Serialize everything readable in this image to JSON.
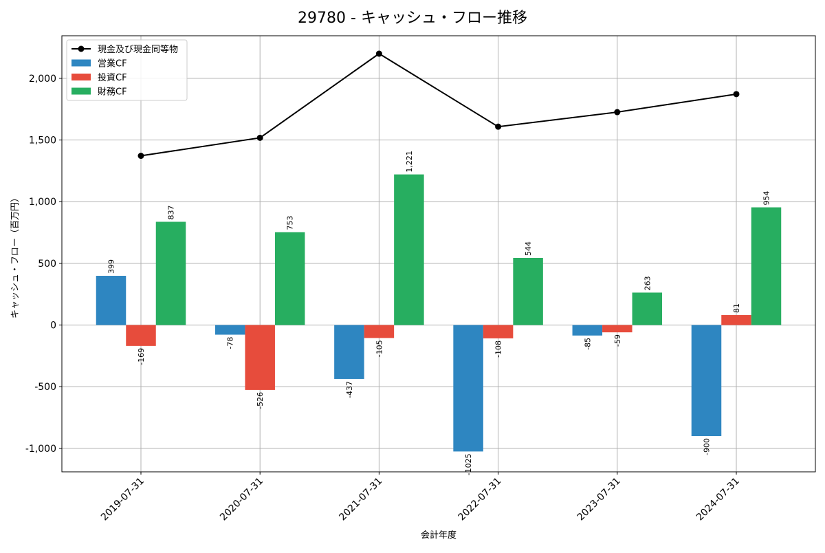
{
  "chart_data": {
    "type": "bar",
    "title": "29780 - キャッシュ・フロー推移",
    "xlabel": "会計年度",
    "ylabel": "キャッシュ・フロー（百万円）",
    "categories": [
      "2019-07-31",
      "2020-07-31",
      "2021-07-31",
      "2022-07-31",
      "2023-07-31",
      "2024-07-31"
    ],
    "ylim": [
      -1190,
      2345
    ],
    "yticks": [
      -1000,
      -500,
      0,
      500,
      1000,
      1500,
      2000
    ],
    "ytick_labels": [
      "-1,000",
      "-500",
      "0",
      "500",
      "1,000",
      "1,500",
      "2,000"
    ],
    "grid": true,
    "legend_position": "top-left",
    "series": [
      {
        "name": "営業CF",
        "kind": "bar",
        "color": "#2e86c1",
        "values": [
          399,
          -78,
          -437,
          -1025,
          -85,
          -900
        ],
        "labels": [
          "399",
          "-78",
          "-437",
          "-1025",
          "-85",
          "-900"
        ]
      },
      {
        "name": "投資CF",
        "kind": "bar",
        "color": "#e74c3c",
        "values": [
          -169,
          -526,
          -105,
          -108,
          -59,
          81
        ],
        "labels": [
          "-169",
          "-526",
          "-105",
          "-108",
          "-59",
          "81"
        ]
      },
      {
        "name": "財務CF",
        "kind": "bar",
        "color": "#27ae60",
        "values": [
          837,
          753,
          1221,
          544,
          263,
          954
        ],
        "labels": [
          "837",
          "753",
          "1,221",
          "544",
          "263",
          "954"
        ]
      },
      {
        "name": "現金及び現金同等物",
        "kind": "line",
        "color": "#000000",
        "values": [
          1372,
          1518,
          2200,
          1608,
          1726,
          1872
        ]
      }
    ]
  }
}
